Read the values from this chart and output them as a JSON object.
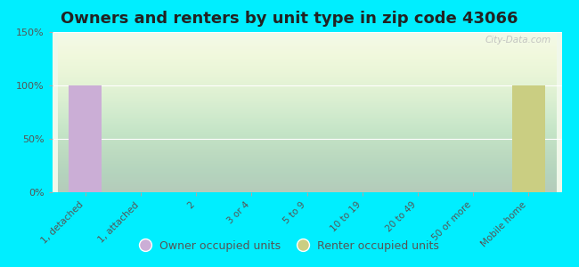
{
  "title": "Owners and renters by unit type in zip code 43066",
  "categories": [
    "1, detached",
    "1, attached",
    "2",
    "3 or 4",
    "5 to 9",
    "10 to 19",
    "20 to 49",
    "50 or more",
    "Mobile home"
  ],
  "owner_values": [
    100,
    0,
    0,
    0,
    0,
    0,
    0,
    0,
    0
  ],
  "renter_values": [
    0,
    0,
    0,
    0,
    0,
    0,
    0,
    0,
    100
  ],
  "owner_color": "#cbaed6",
  "renter_color": "#cace82",
  "background_color": "#00eeff",
  "ylim": [
    0,
    150
  ],
  "yticks": [
    0,
    50,
    100,
    150
  ],
  "ytick_labels": [
    "0%",
    "50%",
    "100%",
    "150%"
  ],
  "bar_width": 0.6,
  "title_fontsize": 13,
  "legend_labels": [
    "Owner occupied units",
    "Renter occupied units"
  ],
  "watermark": "City-Data.com",
  "grid_color": "#ffffff",
  "tick_label_color": "#555555",
  "title_color": "#222222"
}
